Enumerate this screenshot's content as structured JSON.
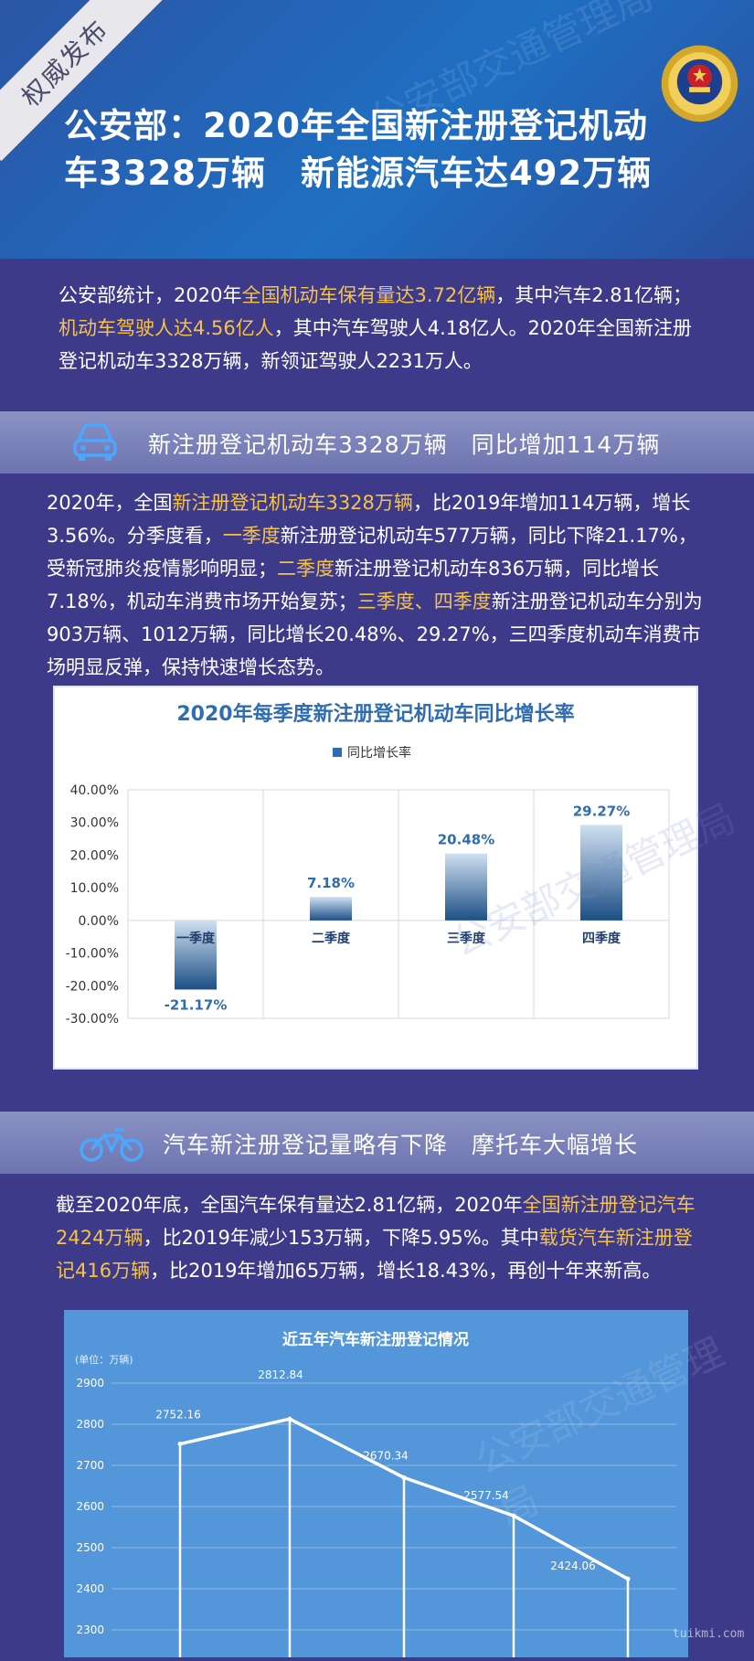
{
  "header": {
    "ribbon": "权威发布",
    "title_line1": "公安部：2020年全国新注册登记机动",
    "title_line2": "车3328万辆　新能源汽车达492万辆"
  },
  "intro": {
    "p1_a": "公安部统计，2020年",
    "p1_hl1": "全国机动车保有量达3.72亿辆",
    "p1_b": "，其中汽车2.81亿辆；",
    "p1_hl2": "机动车驾驶人达4.56亿人",
    "p1_c": "，其中汽车驾驶人4.18亿人。2020年全国新注册登记机动车3328万辆，新领证驾驶人2231万人。"
  },
  "section1": {
    "title": "新注册登记机动车3328万辆　同比增加114万辆",
    "icon": "car-icon",
    "t1": "2020年，全国",
    "hl1": "新注册登记机动车3328万辆",
    "t2": "，比2019年增加114万辆，增长3.56%。分季度看，",
    "hl2": "一季度",
    "t3": "新注册登记机动车577万辆，同比下降21.17%，受新冠肺炎疫情影响明显；",
    "hl3": "二季度",
    "t4": "新注册登记机动车836万辆，同比增长7.18%，机动车消费市场开始复苏；",
    "hl4": "三季度、四季度",
    "t5": "新注册登记机动车分别为903万辆、1012万辆，同比增长20.48%、29.27%，三四季度机动车消费市场明显反弹，保持快速增长态势。"
  },
  "section2": {
    "title": "汽车新注册登记量略有下降　摩托车大幅增长",
    "icon": "motorcycle-icon",
    "t1": "截至2020年底，全国汽车保有量达2.81亿辆，2020年",
    "hl1": "全国新注册登记汽车2424万辆",
    "t2": "，比2019年减少153万辆，下降5.95%。其中",
    "hl2": "载货汽车新注册登记416万辆",
    "t3": "，比2019年增加65万辆，增长18.43%，再创十年来新高。"
  },
  "watermarks": [
    "公安部交通管理局",
    "公安部交通管理局",
    "公安部交通管理局"
  ],
  "footer_watermark": "tuikmi.com",
  "colors": {
    "accent": "#f5c24c",
    "bar_dark": "#1d4f86",
    "bar_light": "#a9c8e6",
    "title_blue": "#2f6db1"
  },
  "chart_data": [
    {
      "type": "bar",
      "title": "2020年每季度新注册登记机动车同比增长率",
      "legend": "同比增长率",
      "legend_position": "top",
      "categories": [
        "一季度",
        "二季度",
        "三季度",
        "四季度"
      ],
      "values": [
        -21.17,
        7.18,
        20.48,
        29.27
      ],
      "value_labels": [
        "-21.17%",
        "7.18%",
        "20.48%",
        "29.27%"
      ],
      "yticks": [
        "40.00%",
        "30.00%",
        "20.00%",
        "10.00%",
        "0.00%",
        "-10.00%",
        "-20.00%",
        "-30.00%"
      ],
      "ylim": [
        -30,
        40
      ],
      "grid": true
    },
    {
      "type": "line",
      "title": "近五年汽车新注册登记情况",
      "unit": "(单位：万辆)",
      "values": [
        2752.16,
        2812.84,
        2670.34,
        2577.54,
        2424.06
      ],
      "value_labels": [
        "2752.16",
        "2812.84",
        "2670.34",
        "2577.54",
        "2424.06"
      ],
      "yticks": [
        "2900",
        "2800",
        "2700",
        "2600",
        "2500",
        "2400",
        "2300"
      ],
      "ylim": [
        2300,
        2900
      ],
      "grid": true
    }
  ]
}
